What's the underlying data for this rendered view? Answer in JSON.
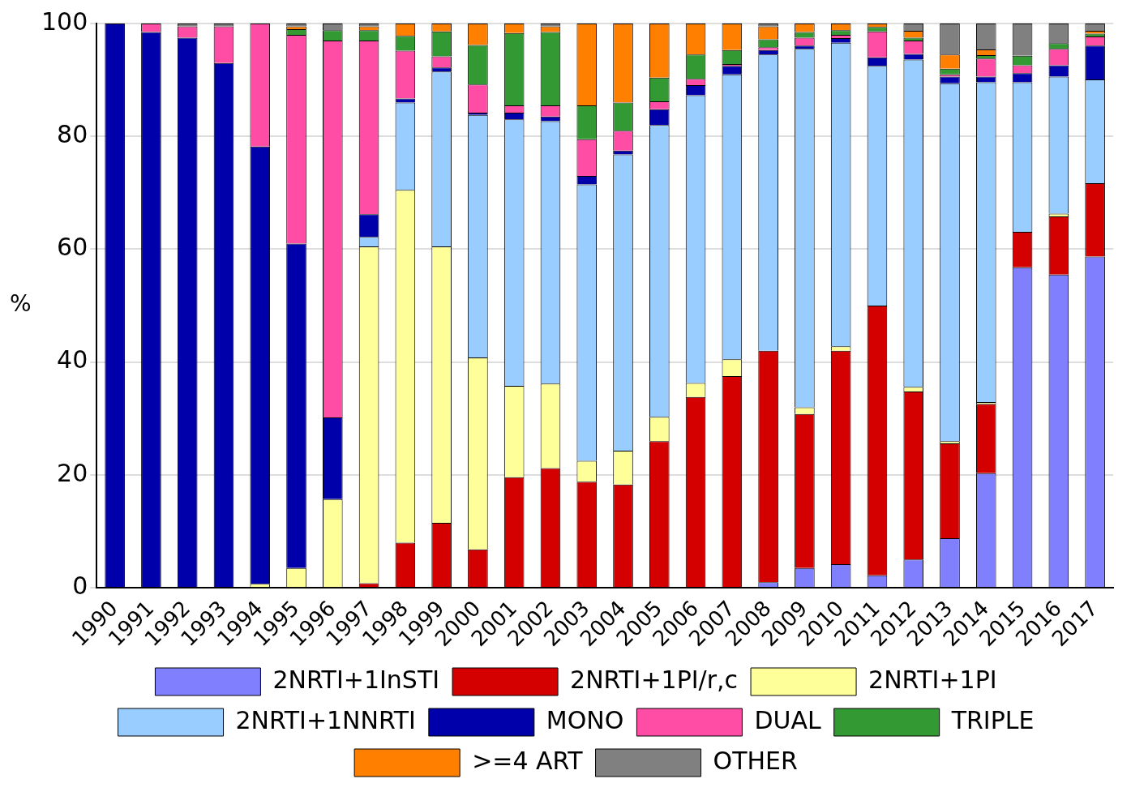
{
  "chart_data": {
    "type": "bar",
    "stacked": true,
    "ylabel": "%",
    "ylim": [
      0,
      100
    ],
    "yticks": [
      0,
      20,
      40,
      60,
      80,
      100
    ],
    "grid": "y",
    "legend": "bottom",
    "categories": [
      "1990",
      "1991",
      "1992",
      "1993",
      "1994",
      "1995",
      "1996",
      "1997",
      "1998",
      "1999",
      "2000",
      "2001",
      "2002",
      "2003",
      "2004",
      "2005",
      "2006",
      "2007",
      "2008",
      "2009",
      "2010",
      "2011",
      "2012",
      "2013",
      "2014",
      "2015",
      "2016",
      "2017"
    ],
    "series": [
      {
        "name": "2NRTI+1InSTI",
        "color": "#8080ff",
        "values": [
          0,
          0,
          0,
          0,
          0,
          0,
          0,
          0,
          0,
          0,
          0,
          0,
          0,
          0,
          0,
          0,
          0,
          0,
          1,
          3.5,
          4.2,
          2.2,
          5,
          8.8,
          20.3,
          56.8,
          55.5,
          58.7
        ]
      },
      {
        "name": "2NRTI+1PI/r,c",
        "color": "#d40000",
        "values": [
          0,
          0,
          0,
          0,
          0,
          0,
          0,
          0.8,
          8,
          11.5,
          6.8,
          19.6,
          21.2,
          18.8,
          18.3,
          26,
          33.8,
          37.5,
          41,
          27.3,
          37.8,
          47.8,
          29.8,
          16.8,
          12.3,
          6.3,
          10.3,
          13
        ]
      },
      {
        "name": "2NRTI+1PI",
        "color": "#ffff99",
        "values": [
          0,
          0,
          0,
          0,
          0.7,
          3.5,
          15.7,
          59.7,
          62.5,
          49,
          34,
          16.2,
          15,
          3.7,
          6,
          4.3,
          2.5,
          3,
          0,
          1.2,
          0.8,
          0,
          0.8,
          0.4,
          0.3,
          0,
          0.5,
          0
        ]
      },
      {
        "name": "2NRTI+1NNRTI",
        "color": "#99ccff",
        "values": [
          0,
          0,
          0,
          0,
          0,
          0,
          0,
          1.7,
          15.5,
          31,
          43,
          47.2,
          46.5,
          49,
          52.5,
          51.7,
          51,
          50.5,
          52.5,
          63.5,
          53.8,
          42.5,
          58,
          63.4,
          56.7,
          26.5,
          24.3,
          18.4
        ]
      },
      {
        "name": "MONO",
        "color": "#0000aa",
        "values": [
          100,
          98.5,
          97.5,
          93,
          77.5,
          57.5,
          14.5,
          4,
          0.7,
          0.7,
          0.4,
          1.2,
          0.8,
          1.5,
          0.7,
          2.8,
          1.8,
          1.5,
          0.8,
          0.6,
          0.8,
          1.5,
          1,
          1.2,
          1,
          1.6,
          2,
          6
        ]
      },
      {
        "name": "DUAL",
        "color": "#ff4da6",
        "values": [
          0,
          1.5,
          2,
          6.5,
          21.8,
          37,
          66.8,
          30.8,
          8.5,
          2,
          5,
          1.3,
          2,
          6.5,
          3.5,
          1.4,
          1.1,
          0.3,
          0.5,
          1.4,
          0.6,
          4.6,
          2.4,
          0.4,
          3.2,
          1.4,
          2.9,
          1.6
        ]
      },
      {
        "name": "TRIPLE",
        "color": "#339933",
        "values": [
          0,
          0,
          0,
          0,
          0,
          1,
          1.8,
          1.8,
          2.6,
          4.4,
          7,
          12.8,
          13,
          6,
          5,
          4.2,
          4.3,
          2.5,
          1.4,
          1,
          0.8,
          0.8,
          0.5,
          1,
          0.6,
          1.7,
          1,
          0.5
        ]
      },
      {
        "name": ">=4 ART",
        "color": "#ff8000",
        "values": [
          0,
          0,
          0,
          0,
          0,
          0.5,
          0,
          0.7,
          2.2,
          1.4,
          3.8,
          1.7,
          1,
          14.5,
          14,
          9.6,
          5.5,
          4.7,
          2.3,
          1.5,
          1.2,
          0.6,
          1.2,
          2.5,
          1,
          0,
          0,
          0.5
        ]
      },
      {
        "name": "OTHER",
        "color": "#808080",
        "values": [
          0,
          0,
          0.5,
          0.5,
          0,
          0.5,
          1.2,
          0.5,
          0,
          0,
          0,
          0,
          0.5,
          0,
          0,
          0,
          0,
          0,
          0.5,
          0,
          0,
          0,
          1.3,
          5.5,
          4.6,
          5.7,
          3.5,
          1.3
        ]
      }
    ]
  }
}
